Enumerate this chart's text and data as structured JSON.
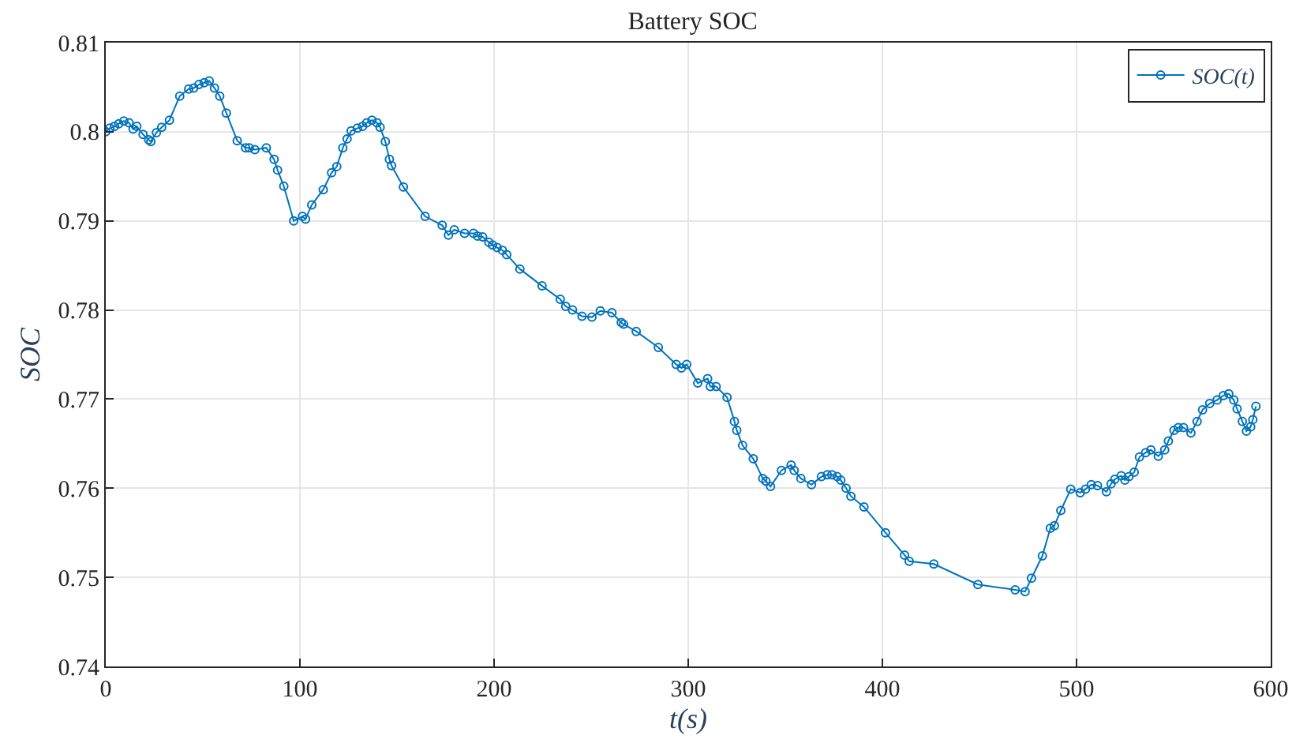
{
  "chart_data": {
    "type": "line",
    "title": "Battery SOC",
    "xlabel": "t(s)",
    "ylabel": "SOC",
    "x": [
      0,
      2.1,
      4.5,
      6.7,
      9.3,
      12,
      14.1,
      16,
      19.2,
      22.1,
      23.2,
      26.1,
      28.8,
      32.8,
      38.1,
      42.7,
      45.3,
      48,
      50.7,
      53.3,
      56,
      58.7,
      62.1,
      67.7,
      72,
      73.9,
      76.8,
      82.7,
      86.7,
      88.5,
      91.7,
      96.8,
      101.3,
      102.9,
      106.1,
      112,
      116.3,
      119,
      122.1,
      124.3,
      126.4,
      129.6,
      132.3,
      134.4,
      137.1,
      139.7,
      141.3,
      144,
      146.1,
      147.2,
      153.3,
      164.5,
      173.3,
      176.5,
      179.5,
      184.8,
      189.4,
      191.5,
      194.1,
      197.3,
      199.2,
      201.6,
      204.3,
      206.5,
      213.3,
      224.7,
      234.1,
      236.9,
      240.4,
      245.3,
      250.4,
      254.7,
      260.7,
      265.5,
      266.7,
      273.2,
      284.6,
      293.8,
      296.5,
      299.2,
      304.9,
      310,
      311.4,
      314.4,
      320,
      323.8,
      325,
      328,
      333.5,
      338.4,
      340,
      342.4,
      348,
      353,
      354.6,
      358,
      363.5,
      368.6,
      371.6,
      374,
      376.7,
      378.6,
      381.3,
      383.8,
      390.5,
      401.6,
      411.4,
      413.8,
      426.5,
      449.2,
      468.4,
      473.5,
      476.8,
      482.4,
      486.5,
      488.6,
      491.9,
      497,
      501.9,
      504.6,
      507.6,
      510.8,
      515.4,
      517.8,
      519.7,
      523,
      524.9,
      527,
      529.7,
      532.4,
      535.6,
      538.3,
      542.1,
      545.4,
      547.3,
      550.2,
      552.4,
      555.1,
      558.9,
      562.1,
      564.9,
      568.6,
      572.4,
      575.6,
      578.4,
      581,
      582.7,
      585.4,
      587.5,
      589.7,
      590.8,
      592.4
    ],
    "series": [
      {
        "name": "SOC(t)",
        "color": "#0072bd",
        "values": [
          0.8,
          0.8004,
          0.8006,
          0.8009,
          0.8012,
          0.801,
          0.8003,
          0.8006,
          0.7997,
          0.7991,
          0.7989,
          0.7999,
          0.8005,
          0.8013,
          0.804,
          0.8048,
          0.8049,
          0.8053,
          0.8055,
          0.8057,
          0.8049,
          0.804,
          0.8021,
          0.799,
          0.7982,
          0.7982,
          0.798,
          0.7982,
          0.7969,
          0.7957,
          0.7939,
          0.79,
          0.7905,
          0.7902,
          0.7918,
          0.7935,
          0.7954,
          0.7961,
          0.7982,
          0.7992,
          0.8001,
          0.8004,
          0.8006,
          0.801,
          0.8013,
          0.801,
          0.8005,
          0.7989,
          0.7969,
          0.7962,
          0.7938,
          0.7905,
          0.7895,
          0.7884,
          0.789,
          0.7886,
          0.7886,
          0.7883,
          0.7882,
          0.7876,
          0.7873,
          0.787,
          0.7867,
          0.7862,
          0.7846,
          0.7827,
          0.7812,
          0.7804,
          0.78,
          0.7793,
          0.7792,
          0.7799,
          0.7797,
          0.7786,
          0.7784,
          0.7776,
          0.7758,
          0.7739,
          0.7735,
          0.7739,
          0.7718,
          0.7723,
          0.7714,
          0.7714,
          0.7702,
          0.7675,
          0.7665,
          0.7648,
          0.7633,
          0.7611,
          0.7608,
          0.7602,
          0.762,
          0.7626,
          0.762,
          0.7611,
          0.7604,
          0.7613,
          0.7615,
          0.7615,
          0.7613,
          0.7609,
          0.76,
          0.7591,
          0.7579,
          0.755,
          0.7525,
          0.7518,
          0.7515,
          0.7492,
          0.7486,
          0.7484,
          0.7499,
          0.7524,
          0.7555,
          0.7558,
          0.7575,
          0.7599,
          0.7595,
          0.7599,
          0.7604,
          0.7603,
          0.7596,
          0.7605,
          0.761,
          0.7614,
          0.7609,
          0.7613,
          0.7618,
          0.7635,
          0.764,
          0.7643,
          0.7636,
          0.7643,
          0.7653,
          0.7665,
          0.7668,
          0.7668,
          0.7662,
          0.7675,
          0.7688,
          0.7695,
          0.7699,
          0.7704,
          0.7706,
          0.7699,
          0.7689,
          0.7675,
          0.7664,
          0.7669,
          0.7677,
          0.7692
        ]
      }
    ],
    "xlim": [
      0,
      600
    ],
    "xticks": [
      0,
      100,
      200,
      300,
      400,
      500,
      600
    ],
    "ylim": [
      0.74,
      0.81
    ],
    "yticks": [
      0.74,
      0.75,
      0.76,
      0.77,
      0.78,
      0.79,
      0.8,
      0.81
    ],
    "grid": true,
    "legend": "top right",
    "marker": "circle",
    "line_style": "solid"
  }
}
